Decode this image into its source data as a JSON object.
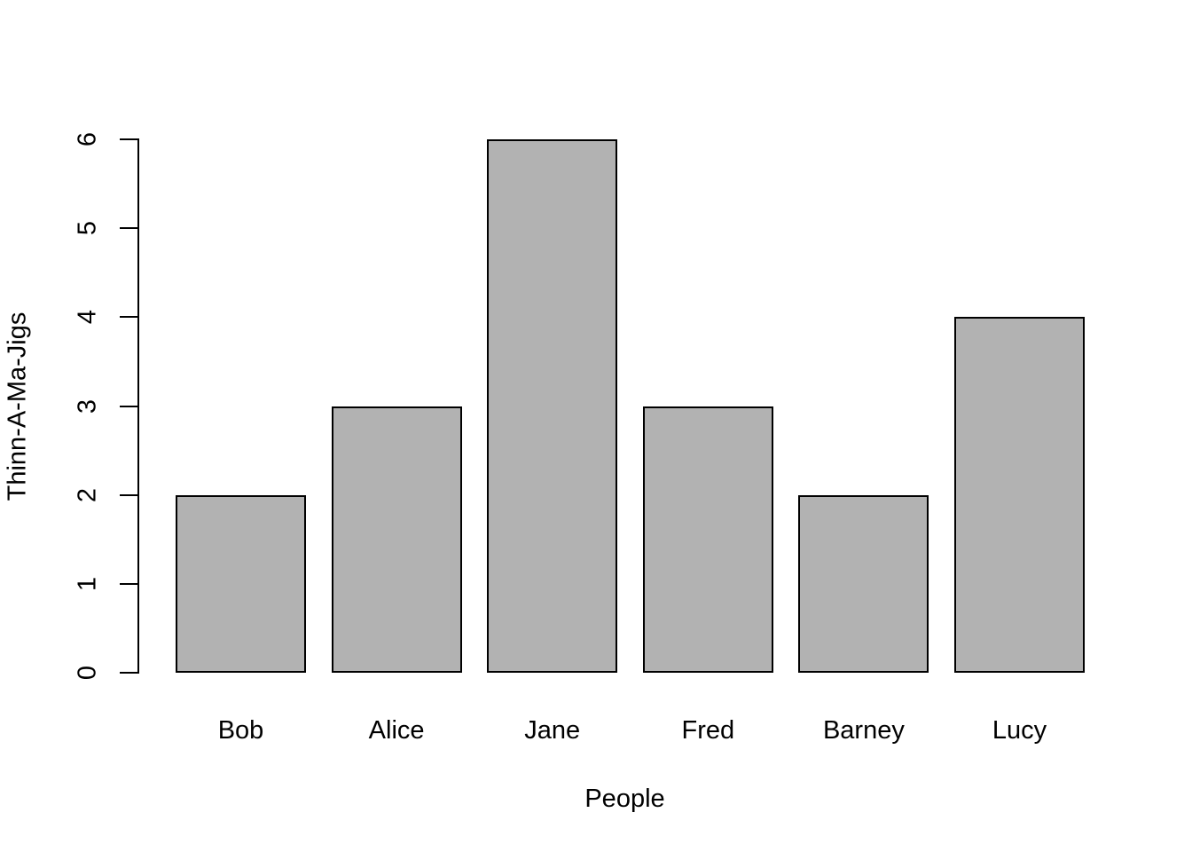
{
  "chart_data": {
    "type": "bar",
    "title": "",
    "categories": [
      "Bob",
      "Alice",
      "Jane",
      "Fred",
      "Barney",
      "Lucy"
    ],
    "values": [
      2,
      3,
      6,
      3,
      2,
      4
    ],
    "xlabel": "People",
    "ylabel": "Thinn-A-Ma-Jigs",
    "ylim": [
      0,
      6
    ],
    "yticks": [
      0,
      1,
      2,
      3,
      4,
      5,
      6
    ],
    "grid": false,
    "legend": "none",
    "style": "base-R-barplot",
    "colors": {
      "bar_fill": "#b2b2b2",
      "bar_border": "#000000",
      "axis": "#000000",
      "text": "#000000",
      "background": "#ffffff"
    }
  }
}
